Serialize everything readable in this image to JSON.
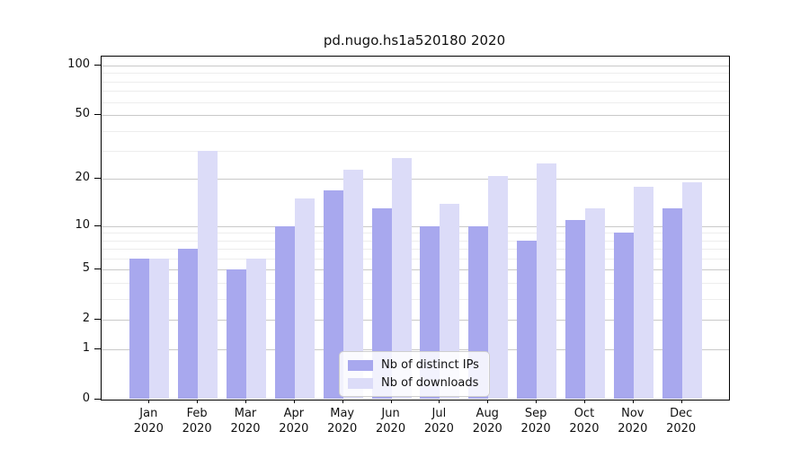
{
  "page": {
    "title": "pd.nugo.hs1a520180 2020"
  },
  "chart_data": {
    "type": "bar",
    "title": "pd.nugo.hs1a520180 2020",
    "categories": [
      "Jan 2020",
      "Feb 2020",
      "Mar 2020",
      "Apr 2020",
      "May 2020",
      "Jun 2020",
      "Jul 2020",
      "Aug 2020",
      "Sep 2020",
      "Oct 2020",
      "Nov 2020",
      "Dec 2020"
    ],
    "x_tick_months": [
      "Jan",
      "Feb",
      "Mar",
      "Apr",
      "May",
      "Jun",
      "Jul",
      "Aug",
      "Sep",
      "Oct",
      "Nov",
      "Dec"
    ],
    "x_tick_year": "2020",
    "series": [
      {
        "name": "Nb of distinct IPs",
        "color": "#a8a8ee",
        "values": [
          6,
          7,
          5,
          10,
          17,
          13,
          10,
          10,
          8,
          11,
          9,
          13
        ]
      },
      {
        "name": "Nb of downloads",
        "color": "#dcdcf8",
        "values": [
          6,
          30,
          6,
          15,
          23,
          27,
          14,
          21,
          25,
          13,
          18,
          19
        ]
      }
    ],
    "y_scale": "log1p",
    "ylim": [
      0,
      100
    ],
    "y_ticks": [
      0,
      1,
      2,
      5,
      10,
      20,
      50,
      100
    ],
    "y_minor_ticks": [
      3,
      4,
      6,
      7,
      8,
      9,
      30,
      40,
      60,
      70,
      80,
      90
    ],
    "grid": true,
    "legend_position": "inside-bottom-center",
    "colors": {
      "bar_dark": "#a8a8ee",
      "bar_light": "#dcdcf8",
      "major_grid": "#c9c9c9",
      "minor_grid": "#ededed",
      "axis": "#000000",
      "background": "#ffffff"
    }
  }
}
